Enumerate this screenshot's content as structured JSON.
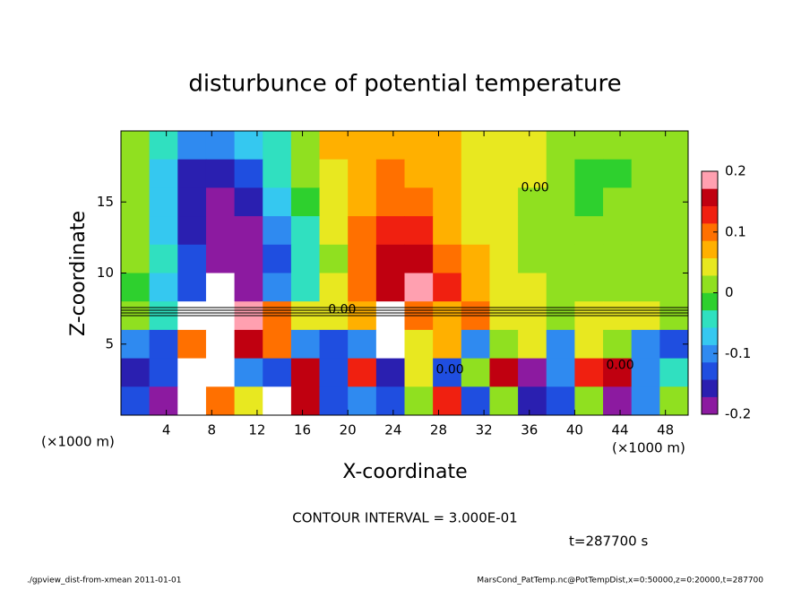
{
  "chart_data": {
    "type": "heatmap",
    "title": "disturbunce of potential temperature",
    "x_label": "X-coordinate",
    "y_label": "Z-coordinate",
    "x_unit_left": "(×1000 m)",
    "x_unit_right": "(×1000 m)",
    "contour_note": "CONTOUR INTERVAL = 3.000E-01",
    "time_note": "t=287700 s",
    "footer_left": "./gpview_dist-from-xmean  2011-01-01",
    "footer_right": "MarsCond_PatTemp.nc@PotTempDist,x=0:50000,z=0:20000,t=287700",
    "xlim": [
      0,
      50
    ],
    "ylim": [
      0,
      20
    ],
    "xticks": [
      4,
      8,
      12,
      16,
      20,
      24,
      28,
      32,
      36,
      40,
      44,
      48
    ],
    "yticks": [
      5,
      10,
      15
    ],
    "clim": [
      -0.2,
      0.2
    ],
    "cticks": [
      -0.2,
      -0.1,
      0,
      0.1,
      0.2
    ],
    "colorscale": [
      "#8c1aa0",
      "#2a1fb0",
      "#1f4ee0",
      "#2f8af0",
      "#35c8f0",
      "#30e0c0",
      "#2ed02e",
      "#90e020",
      "#e8e820",
      "#ffb000",
      "#ff7000",
      "#f02010",
      "#c00010",
      "#ffa0b0"
    ],
    "x": [
      1.25,
      3.75,
      6.25,
      8.75,
      11.25,
      13.75,
      16.25,
      18.75,
      21.25,
      23.75,
      26.25,
      28.75,
      31.25,
      33.75,
      36.25,
      38.75,
      41.25,
      43.75,
      46.25,
      48.75
    ],
    "y": [
      19,
      17,
      15,
      13,
      11,
      9,
      7,
      5,
      3,
      1
    ],
    "z": [
      [
        0.0,
        -0.05,
        -0.1,
        -0.1,
        -0.08,
        -0.03,
        0.02,
        0.06,
        0.08,
        0.08,
        0.08,
        0.07,
        0.05,
        0.04,
        0.03,
        0.02,
        0.01,
        0.0,
        0.0,
        0.0
      ],
      [
        0.0,
        -0.08,
        -0.15,
        -0.16,
        -0.12,
        -0.05,
        0.0,
        0.05,
        0.08,
        0.09,
        0.08,
        0.07,
        0.05,
        0.04,
        0.03,
        0.01,
        -0.01,
        -0.01,
        0.0,
        0.0
      ],
      [
        0.0,
        -0.08,
        -0.16,
        -0.18,
        -0.15,
        -0.07,
        -0.02,
        0.04,
        0.08,
        0.1,
        0.09,
        0.07,
        0.05,
        0.03,
        0.01,
        0.0,
        -0.01,
        0.0,
        0.01,
        0.0
      ],
      [
        0.0,
        -0.07,
        -0.15,
        -0.18,
        -0.18,
        -0.1,
        -0.03,
        0.03,
        0.09,
        0.14,
        0.13,
        0.08,
        0.05,
        0.03,
        0.01,
        0.0,
        0.0,
        0.0,
        0.01,
        0.0
      ],
      [
        0.0,
        -0.05,
        -0.13,
        -0.2,
        -0.2,
        -0.12,
        -0.05,
        0.02,
        0.1,
        0.17,
        0.17,
        0.1,
        0.06,
        0.03,
        0.01,
        0.0,
        0.0,
        0.0,
        0.0,
        0.0
      ],
      [
        -0.02,
        -0.06,
        -0.12,
        0.22,
        -0.2,
        -0.1,
        -0.03,
        0.03,
        0.1,
        0.17,
        0.2,
        0.12,
        0.08,
        0.05,
        0.03,
        0.02,
        0.02,
        0.02,
        0.0,
        0.0
      ],
      [
        0.0,
        -0.05,
        0.22,
        0.22,
        0.2,
        0.1,
        0.05,
        0.05,
        0.08,
        0.22,
        0.1,
        0.08,
        0.1,
        0.05,
        0.05,
        0.0,
        0.05,
        0.05,
        0.05,
        0.0
      ],
      [
        -0.1,
        -0.12,
        0.1,
        0.22,
        0.15,
        0.1,
        -0.1,
        -0.12,
        -0.1,
        0.22,
        0.05,
        0.08,
        -0.1,
        0.0,
        0.05,
        -0.1,
        0.05,
        0.0,
        -0.1,
        -0.12
      ],
      [
        -0.15,
        -0.12,
        0.22,
        0.22,
        -0.1,
        -0.12,
        0.15,
        -0.12,
        0.12,
        -0.15,
        0.05,
        -0.12,
        0.0,
        0.15,
        -0.18,
        -0.1,
        0.12,
        0.15,
        -0.1,
        -0.05
      ],
      [
        -0.12,
        -0.18,
        0.22,
        0.1,
        0.05,
        0.22,
        0.15,
        -0.12,
        -0.1,
        -0.12,
        0.0,
        0.12,
        -0.12,
        0.0,
        -0.15,
        -0.12,
        0.0,
        -0.18,
        -0.1,
        0.0
      ]
    ],
    "annotations": [
      {
        "text": "0.00",
        "x": 36.5,
        "y": 16
      },
      {
        "text": "0.00",
        "x": 19.5,
        "y": 7.4
      },
      {
        "text": "0.00",
        "x": 29,
        "y": 3.2
      },
      {
        "text": "0.00",
        "x": 44,
        "y": 3.5
      }
    ]
  }
}
